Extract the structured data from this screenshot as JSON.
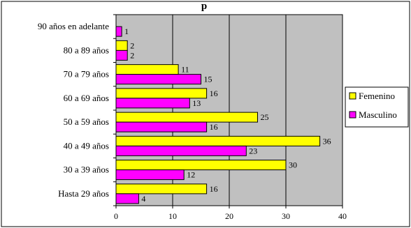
{
  "chart_data": {
    "type": "bar",
    "orientation": "horizontal",
    "title": "p",
    "categories": [
      "90 años en adelante",
      "80 a 89 años",
      "70 a 79 años",
      "60 a 69 años",
      "50 a 59 años",
      "40 a 49 años",
      "30 a 39 años",
      "Hasta 29 años"
    ],
    "series": [
      {
        "name": "Femenino",
        "values": [
          0,
          2,
          11,
          16,
          25,
          36,
          30,
          16
        ],
        "color": "#FFFF00"
      },
      {
        "name": "Masculino",
        "values": [
          1,
          2,
          15,
          13,
          16,
          23,
          12,
          4
        ],
        "color": "#FF00FF"
      }
    ],
    "xlim": [
      0,
      40
    ],
    "xticks": [
      0,
      10,
      20,
      30,
      40
    ],
    "grid": true,
    "plot_background": "#C0C0C0",
    "legend_position": "right"
  }
}
